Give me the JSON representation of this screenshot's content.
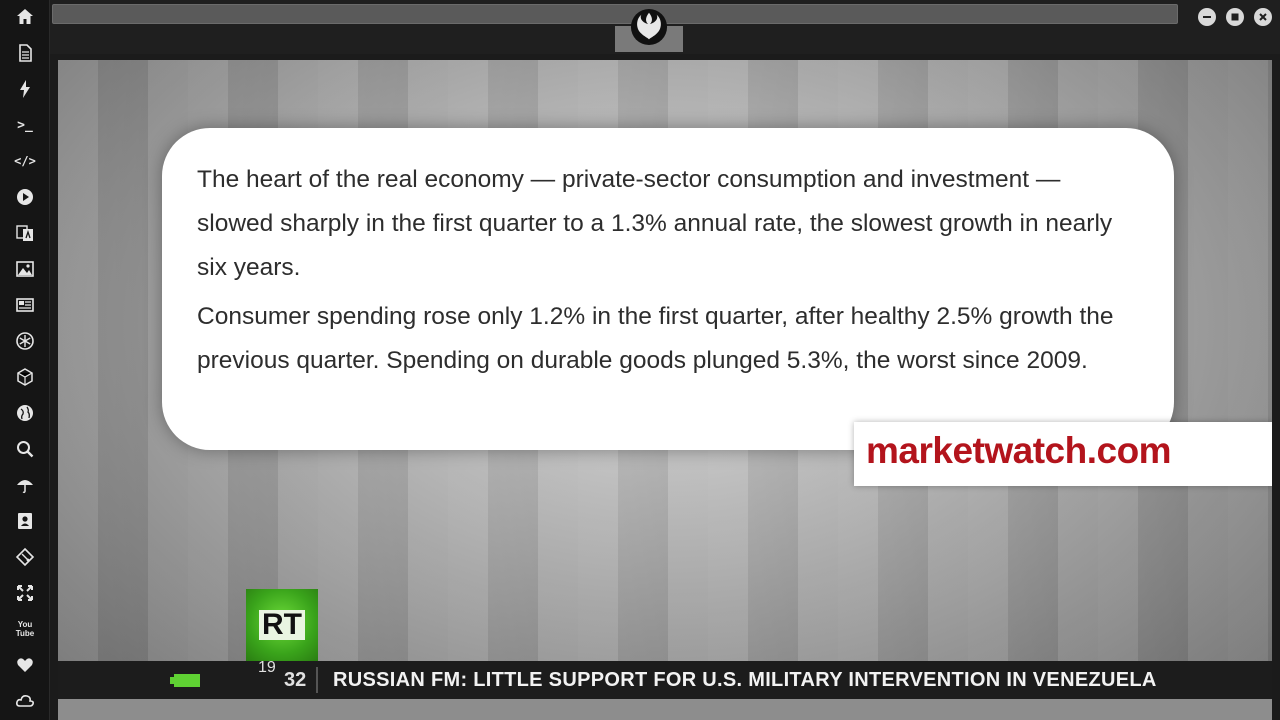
{
  "dock": {
    "items": [
      {
        "name": "home-icon"
      },
      {
        "name": "document-icon"
      },
      {
        "name": "bolt-icon"
      },
      {
        "name": "terminal-icon",
        "text": ">_"
      },
      {
        "name": "code-icon",
        "text": "</>"
      },
      {
        "name": "play-icon"
      },
      {
        "name": "translate-icon"
      },
      {
        "name": "image-icon"
      },
      {
        "name": "news-icon"
      },
      {
        "name": "snowflake-icon"
      },
      {
        "name": "cube-icon"
      },
      {
        "name": "globe-icon"
      },
      {
        "name": "search-icon"
      },
      {
        "name": "umbrella-icon"
      },
      {
        "name": "contact-icon"
      },
      {
        "name": "git-icon"
      },
      {
        "name": "fullscreen-icon"
      },
      {
        "name": "youtube-icon",
        "text": "You Tube"
      },
      {
        "name": "heart-icon"
      },
      {
        "name": "cloud-icon"
      }
    ]
  },
  "window": {
    "emblem": "rebel-alliance-icon",
    "controls": [
      "minimize-icon",
      "maximize-icon",
      "close-icon"
    ]
  },
  "video": {
    "quote": {
      "paragraphs": [
        "The heart of the real economy — private-sector consumption and investment — slowed sharply in the first quarter to a 1.3% annual rate, the slowest growth in nearly six years.",
        "Consumer spending rose only 1.2% in the first quarter, after healthy 2.5% growth the previous quarter. Spending on durable goods plunged 5.3%, the worst since 2009."
      ]
    },
    "source": "marketwatch.com",
    "channel_logo": "RT",
    "ticker": {
      "time_top": "19",
      "time": "32",
      "headline": "RUSSIAN FM: LITTLE SUPPORT FOR U.S. MILITARY INTERVENTION IN VENEZUELA"
    }
  },
  "colors": {
    "source_red": "#b3141c",
    "rt_green": "#3aa41b",
    "ticker_green": "#5fd133"
  }
}
